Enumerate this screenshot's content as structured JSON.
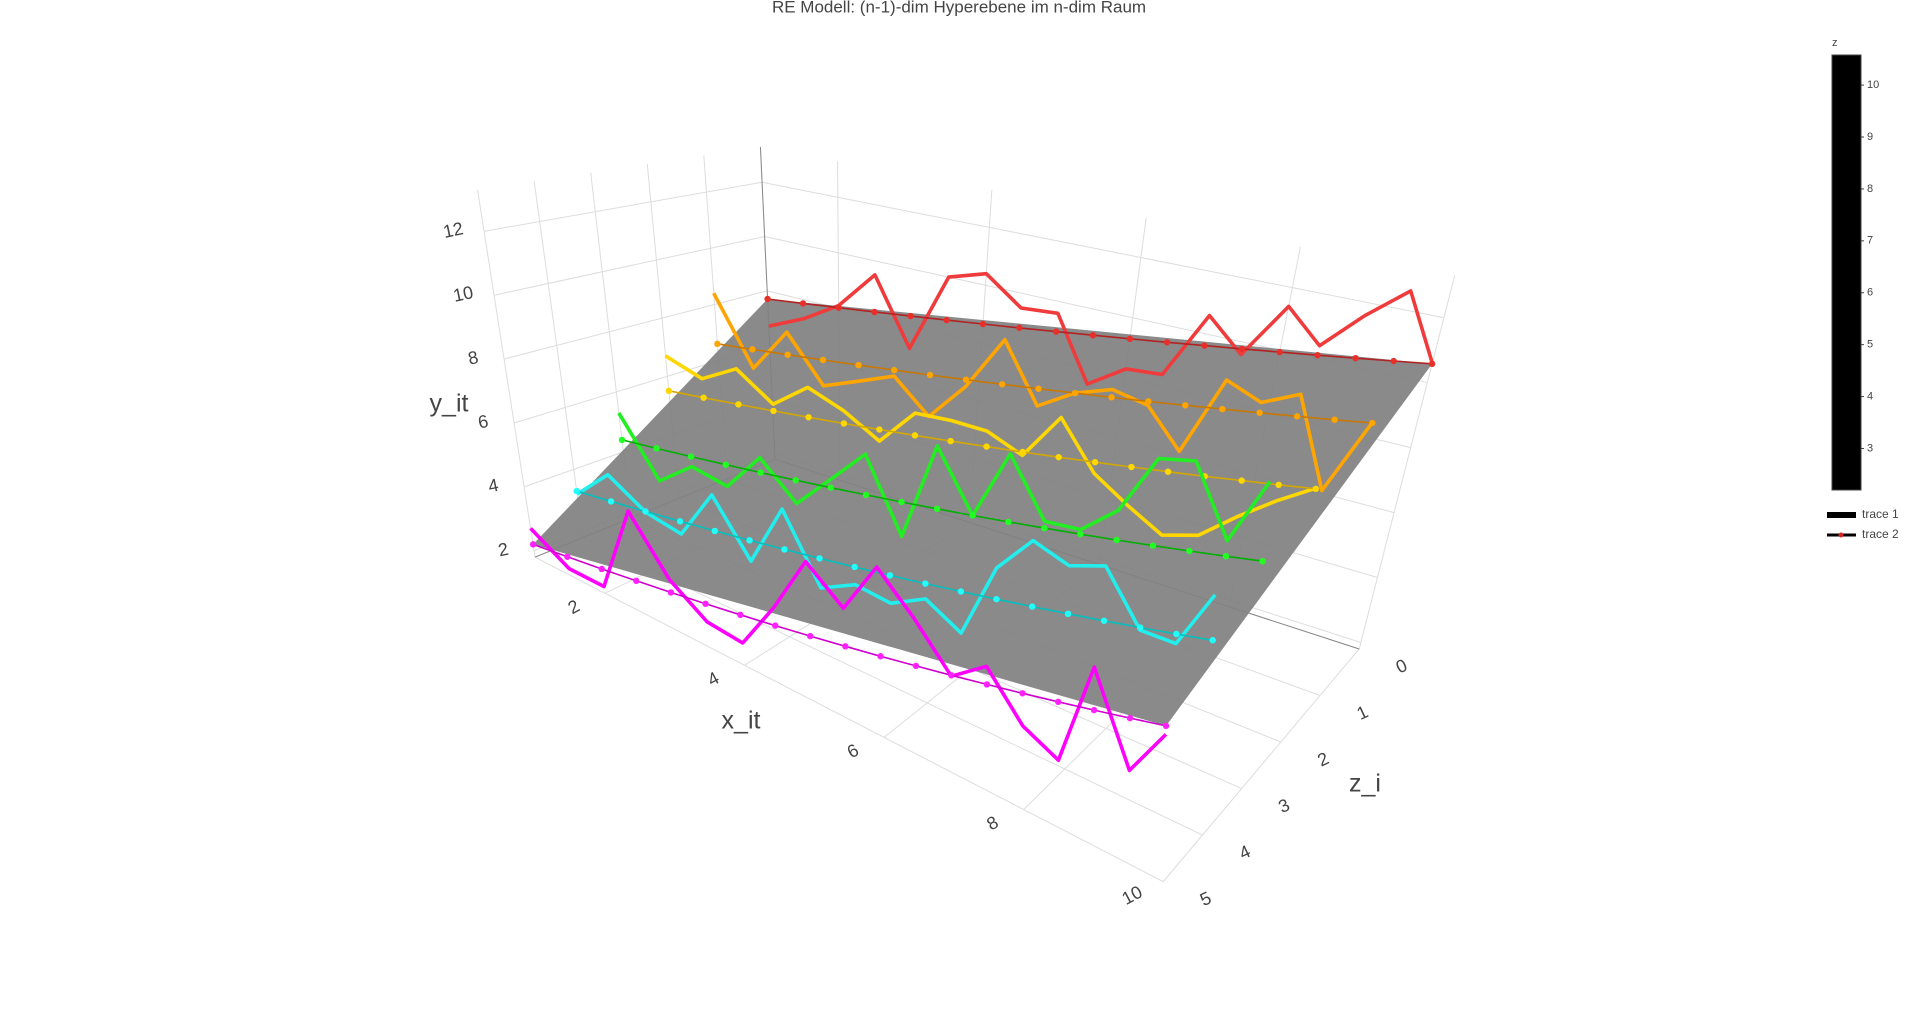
{
  "chart_data": {
    "type": "scatter3d",
    "title": "RE Modell: (n-1)-dim Hyperebene im n-dim Raum",
    "xaxis_title": "x_it",
    "yaxis_title": "y_it",
    "zaxis_title": "z_i",
    "xlim": [
      1,
      10
    ],
    "ylim": [
      1.8,
      13.3
    ],
    "zlim": [
      0,
      5
    ],
    "xticks": [
      2,
      4,
      6,
      8,
      10
    ],
    "yticks": [
      2,
      4,
      6,
      8,
      10,
      12
    ],
    "zticks": [
      0,
      1,
      2,
      3,
      4,
      5
    ],
    "grid": true,
    "x": [
      1,
      1.5,
      2,
      2.5,
      3,
      3.5,
      4,
      4.5,
      5,
      5.5,
      6,
      6.5,
      7,
      7.5,
      8,
      8.5,
      9,
      9.5,
      10
    ],
    "surface": {
      "color": "#808080"
    },
    "series": [
      {
        "z": 0,
        "mode": "lines",
        "color": "#ef3b3b",
        "values": [
          6.7,
          7.3,
          8.1,
          9.5,
          7.2,
          10.0,
          10.4,
          9.5,
          9.6,
          7.5,
          8.3,
          8.4,
          10.6,
          9.6,
          11.4,
          10.4,
          11.6,
          12.6,
          10.6
        ]
      },
      {
        "z": 0,
        "mode": "lines+markers",
        "color": "#b22222",
        "marker_color": "#e8302a",
        "values": [
          7.7,
          7.86,
          8.02,
          8.18,
          8.34,
          8.5,
          8.66,
          8.82,
          8.98,
          9.14,
          9.3,
          9.46,
          9.62,
          9.78,
          9.94,
          10.1,
          10.26,
          10.42,
          10.58
        ]
      },
      {
        "z": 1,
        "mode": "lines",
        "color": "#ffa500",
        "values": [
          8.4,
          6.1,
          7.7,
          6.2,
          6.7,
          7.2,
          6.2,
          7.5,
          9.3,
          7.5,
          8.2,
          8.6,
          8.4,
          7.3,
          9.7,
          9.3,
          9.8,
          7.3,
          9.5
        ]
      },
      {
        "z": 1,
        "mode": "lines+markers",
        "color": "#c87800",
        "marker_color": "#ffa500",
        "values": [
          6.6,
          6.76,
          6.92,
          7.08,
          7.24,
          7.4,
          7.56,
          7.72,
          7.88,
          8.04,
          8.2,
          8.36,
          8.52,
          8.68,
          8.84,
          9.0,
          9.16,
          9.32,
          9.48
        ]
      },
      {
        "z": 2,
        "mode": "lines",
        "color": "#ffd700",
        "values": [
          6.7,
          6.3,
          7.0,
          6.2,
          7.1,
          6.7,
          6.1,
          7.3,
          7.4,
          7.4,
          7.0,
          8.4,
          7.1,
          6.5,
          6.0,
          6.3,
          7.1,
          7.8,
          8.4
        ]
      },
      {
        "z": 2,
        "mode": "lines+markers",
        "color": "#d4a800",
        "marker_color": "#ffd700",
        "values": [
          5.5,
          5.66,
          5.82,
          5.98,
          6.14,
          6.3,
          6.46,
          6.62,
          6.78,
          6.94,
          7.1,
          7.26,
          7.42,
          7.58,
          7.74,
          7.9,
          8.06,
          8.22,
          8.38
        ]
      },
      {
        "z": 3,
        "mode": "lines",
        "color": "#22ee22",
        "values": [
          5.3,
          3.5,
          4.4,
          4.2,
          5.5,
          4.5,
          5.6,
          6.7,
          4.7,
          7.6,
          6.0,
          8.0,
          6.5,
          6.6,
          7.4,
          9.0,
          9.2,
          7.5,
          9.2
        ]
      },
      {
        "z": 3,
        "mode": "lines+markers",
        "color": "#00b000",
        "marker_color": "#22ff22",
        "values": [
          4.4,
          4.56,
          4.72,
          4.88,
          5.04,
          5.2,
          5.36,
          5.52,
          5.68,
          5.84,
          6.0,
          6.16,
          6.32,
          6.48,
          6.64,
          6.8,
          6.96,
          7.12,
          7.28
        ]
      },
      {
        "z": 4,
        "mode": "lines",
        "color": "#22eeee",
        "values": [
          3.2,
          4.3,
          3.6,
          3.4,
          5.0,
          3.5,
          5.4,
          3.6,
          4.1,
          4.0,
          4.5,
          4.0,
          6.0,
          7.0,
          6.7,
          7.0,
          5.8,
          5.8,
          7.2
        ]
      },
      {
        "z": 4,
        "mode": "lines+markers",
        "color": "#00c0c0",
        "marker_color": "#22ffff",
        "values": [
          3.3,
          3.46,
          3.62,
          3.78,
          3.94,
          4.1,
          4.26,
          4.42,
          4.58,
          4.74,
          4.9,
          5.06,
          5.22,
          5.38,
          5.54,
          5.7,
          5.86,
          6.02,
          6.18
        ]
      },
      {
        "z": 5,
        "mode": "lines",
        "color": "#ff00ff",
        "values": [
          2.7,
          2.0,
          2.0,
          4.7,
          3.2,
          2.5,
          2.4,
          3.8,
          5.4,
          4.6,
          6.0,
          5.1,
          4.1,
          4.7,
          3.7,
          3.3,
          5.7,
          3.8,
          4.9
        ]
      },
      {
        "z": 5,
        "mode": "lines+markers",
        "color": "#d000d0",
        "marker_color": "#ff22ff",
        "values": [
          2.2,
          2.36,
          2.52,
          2.68,
          2.84,
          3.0,
          3.16,
          3.32,
          3.48,
          3.64,
          3.8,
          3.96,
          4.12,
          4.28,
          4.44,
          4.6,
          4.76,
          4.92,
          5.08
        ]
      }
    ],
    "colorbar": {
      "title": "z",
      "range": [
        2.2,
        10.58
      ],
      "ticks": [
        3,
        4,
        5,
        6,
        7,
        8,
        9,
        10
      ],
      "color": "#000000"
    },
    "legend": [
      {
        "name": "trace 1",
        "color": "#000000"
      },
      {
        "name": "trace 2",
        "color": "#000000",
        "marker_color": "#d62728"
      }
    ]
  }
}
